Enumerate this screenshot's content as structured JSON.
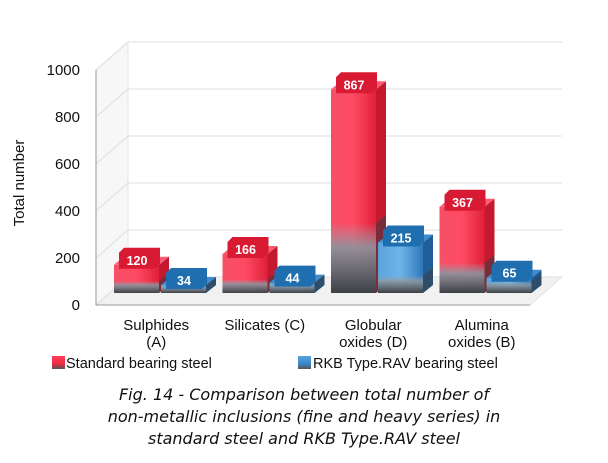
{
  "chart_data": {
    "type": "bar",
    "title": "",
    "xlabel": "",
    "ylabel": "Total number",
    "ylim": [
      0,
      1000
    ],
    "yticks": [
      "0",
      "200",
      "400",
      "600",
      "800",
      "1000"
    ],
    "categories": [
      [
        "Sulphides",
        "(A)"
      ],
      [
        "Silicates (C)"
      ],
      [
        "Globular",
        "oxides (D)"
      ],
      [
        "Alumina",
        "oxides (B)"
      ]
    ],
    "series": [
      {
        "name": "Standard bearing steel",
        "values": [
          120,
          166,
          867,
          367
        ],
        "color": "#ef2b45"
      },
      {
        "name": "RKB Type.RAV bearing steel",
        "values": [
          34,
          44,
          215,
          65
        ],
        "color": "#3a86c8"
      }
    ],
    "legend_position": "bottom",
    "style": "3d-bars",
    "grid": true
  },
  "caption": [
    "Fig. 14 - Comparison between total number of",
    "non-metallic inclusions (fine and heavy series) in",
    "standard steel and RKB Type.RAV steel"
  ]
}
